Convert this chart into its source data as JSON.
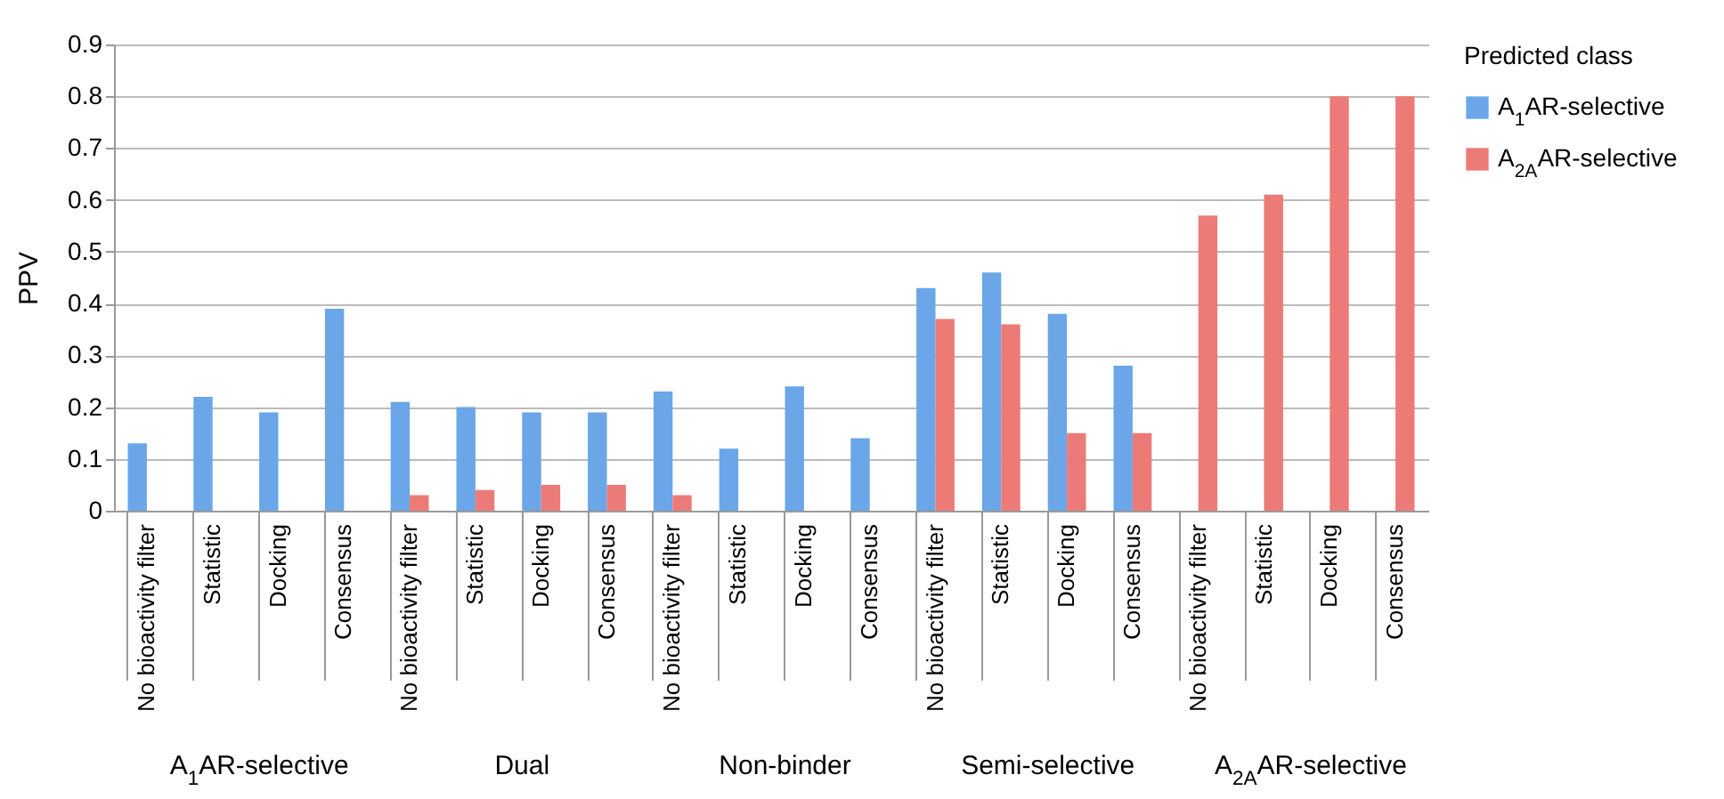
{
  "chart_data": {
    "type": "bar",
    "ylabel": "PPV",
    "legend_title": "Predicted class",
    "legend": "top right",
    "grid": "y",
    "categories": [
      "No bioactivity filter",
      "Statistic",
      "Docking",
      "Consensus",
      "No bioactivity filter",
      "Statistic",
      "Docking",
      "Consensus",
      "No bioactivity filter",
      "Statistic",
      "Docking",
      "Consensus",
      "No bioactivity filter",
      "Statistic",
      "Docking",
      "Consensus",
      "No bioactivity filter",
      "Statistic",
      "Docking",
      "Consensus"
    ],
    "annotations": [
      "A$_{1}$AR-selective",
      "Dual",
      "Non-binder",
      "Semi-selective",
      "A$_{2A}$AR-selective"
    ],
    "ylim": [
      0,
      0.9
    ],
    "yticks": [
      0,
      0.1,
      0.2,
      0.3,
      0.4,
      0.5,
      0.6,
      0.7,
      0.8,
      0.9
    ],
    "series": [
      {
        "name": "A$_{1}$AR-selective",
        "color": "#6aa6e8",
        "values": [
          0.13,
          0.22,
          0.19,
          0.39,
          0.21,
          0.2,
          0.19,
          0.19,
          0.23,
          0.12,
          0.24,
          0.14,
          0.43,
          0.46,
          0.38,
          0.28,
          0,
          0,
          0,
          0
        ]
      },
      {
        "name": "A$_{2A}$AR-selective",
        "color": "#ec7b78",
        "values": [
          0,
          0,
          0,
          0,
          0.03,
          0.04,
          0.05,
          0.05,
          0.03,
          0,
          0,
          0,
          0.37,
          0.36,
          0.15,
          0.15,
          0.57,
          0.61,
          0.8,
          0.8
        ]
      }
    ]
  }
}
